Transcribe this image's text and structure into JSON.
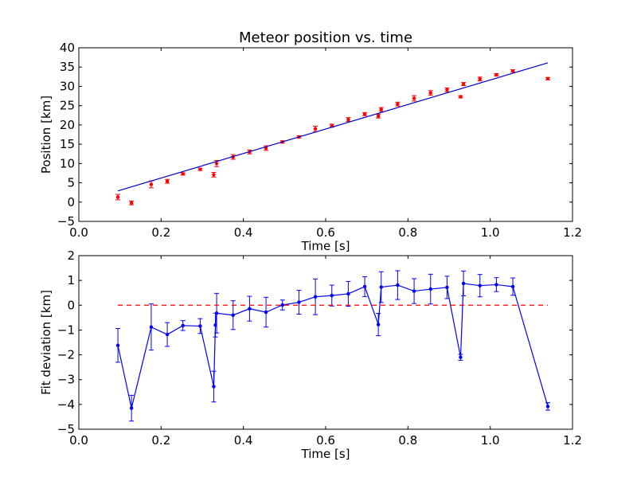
{
  "chart_data": [
    {
      "type": "scatter",
      "title": "Meteor position vs. time",
      "xlabel": "Time [s]",
      "ylabel": "Position [km]",
      "xlim": [
        0.0,
        1.2
      ],
      "ylim": [
        -5,
        40
      ],
      "xticks": [
        "0.0",
        "0.2",
        "0.4",
        "0.6",
        "0.8",
        "1.0",
        "1.2"
      ],
      "yticks": [
        "−5",
        "0",
        "5",
        "10",
        "15",
        "20",
        "25",
        "30",
        "35",
        "40"
      ],
      "xtick_values": [
        0.0,
        0.2,
        0.4,
        0.6,
        0.8,
        1.0,
        1.2
      ],
      "ytick_values": [
        -5,
        0,
        5,
        10,
        15,
        20,
        25,
        30,
        35,
        40
      ],
      "grid": false,
      "colors": {
        "points": "#ff0000",
        "fit": "#0000cc"
      },
      "series": [
        {
          "kind": "points_with_error",
          "x": [
            0.095,
            0.128,
            0.176,
            0.215,
            0.253,
            0.295,
            0.328,
            0.335,
            0.375,
            0.415,
            0.455,
            0.495,
            0.535,
            0.575,
            0.615,
            0.655,
            0.695,
            0.728,
            0.735,
            0.775,
            0.815,
            0.855,
            0.895,
            0.928,
            0.935,
            0.975,
            1.015,
            1.055,
            1.14
          ],
          "y": [
            1.3,
            -0.2,
            4.6,
            5.4,
            7.3,
            8.5,
            7.1,
            10.0,
            11.7,
            13.0,
            14.0,
            15.6,
            16.9,
            19.0,
            19.8,
            21.4,
            22.8,
            22.3,
            24.0,
            25.4,
            26.9,
            28.3,
            29.1,
            27.3,
            30.6,
            31.9,
            33.0,
            34.0,
            32.0
          ],
          "yerr": [
            0.7,
            0.5,
            0.9,
            0.5,
            0.3,
            0.3,
            0.6,
            0.8,
            0.6,
            0.5,
            0.6,
            0.3,
            0.3,
            0.7,
            0.4,
            0.5,
            0.4,
            0.5,
            0.5,
            0.5,
            0.7,
            0.6,
            0.5,
            0.3,
            0.4,
            0.5,
            0.3,
            0.3,
            0.3
          ]
        },
        {
          "kind": "fit_line",
          "x": [
            0.095,
            1.14
          ],
          "y": [
            2.9,
            36.1
          ]
        }
      ]
    },
    {
      "type": "line",
      "xlabel": "Time [s]",
      "ylabel": "Fit deviation [km]",
      "xlim": [
        0.0,
        1.2
      ],
      "ylim": [
        -5,
        2
      ],
      "xticks": [
        "0.0",
        "0.2",
        "0.4",
        "0.6",
        "0.8",
        "1.0",
        "1.2"
      ],
      "yticks": [
        "−5",
        "−4",
        "−3",
        "−2",
        "−1",
        "0",
        "1",
        "2"
      ],
      "xtick_values": [
        0.0,
        0.2,
        0.4,
        0.6,
        0.8,
        1.0,
        1.2
      ],
      "ytick_values": [
        -5,
        -4,
        -3,
        -2,
        -1,
        0,
        1,
        2
      ],
      "grid": false,
      "colors": {
        "residual": "#0000ff",
        "zero": "#ff0000"
      },
      "series": [
        {
          "kind": "residual_line_with_error",
          "x": [
            0.095,
            0.128,
            0.176,
            0.215,
            0.253,
            0.295,
            0.328,
            0.332,
            0.335,
            0.375,
            0.415,
            0.455,
            0.495,
            0.535,
            0.575,
            0.615,
            0.655,
            0.695,
            0.728,
            0.735,
            0.775,
            0.815,
            0.855,
            0.895,
            0.928,
            0.935,
            0.975,
            1.015,
            1.055,
            1.14
          ],
          "y": [
            -1.62,
            -4.15,
            -0.88,
            -1.18,
            -0.82,
            -0.84,
            -3.28,
            -0.8,
            -0.32,
            -0.4,
            -0.14,
            -0.28,
            0.01,
            0.12,
            0.34,
            0.39,
            0.46,
            0.75,
            -0.78,
            0.73,
            0.81,
            0.57,
            0.65,
            0.72,
            -2.1,
            0.88,
            0.79,
            0.83,
            0.75,
            -4.08
          ]
        },
        {
          "kind": "residual_points_with_error",
          "x": [
            0.095,
            0.128,
            0.176,
            0.215,
            0.253,
            0.295,
            0.328,
            0.332,
            0.335,
            0.375,
            0.415,
            0.455,
            0.495,
            0.535,
            0.575,
            0.615,
            0.655,
            0.695,
            0.728,
            0.735,
            0.775,
            0.815,
            0.855,
            0.895,
            0.928,
            0.935,
            0.975,
            1.015,
            1.055,
            1.14
          ],
          "y": [
            -1.62,
            -4.15,
            -0.88,
            -1.18,
            -0.82,
            -0.84,
            -3.28,
            -0.8,
            -0.32,
            -0.4,
            -0.14,
            -0.28,
            0.01,
            0.12,
            0.34,
            0.39,
            0.46,
            0.75,
            -0.78,
            0.73,
            0.81,
            0.57,
            0.65,
            0.72,
            -2.1,
            0.88,
            0.79,
            0.83,
            0.75,
            -4.08
          ],
          "yerr": [
            0.68,
            0.52,
            0.93,
            0.48,
            0.2,
            0.3,
            0.62,
            0.48,
            0.8,
            0.58,
            0.5,
            0.6,
            0.2,
            0.48,
            0.72,
            0.42,
            0.5,
            0.4,
            0.45,
            0.62,
            0.58,
            0.5,
            0.6,
            0.45,
            0.12,
            0.5,
            0.45,
            0.28,
            0.35,
            0.15
          ]
        },
        {
          "kind": "zero_line",
          "x": [
            0.095,
            1.14
          ],
          "y": [
            0,
            0
          ]
        }
      ]
    }
  ]
}
